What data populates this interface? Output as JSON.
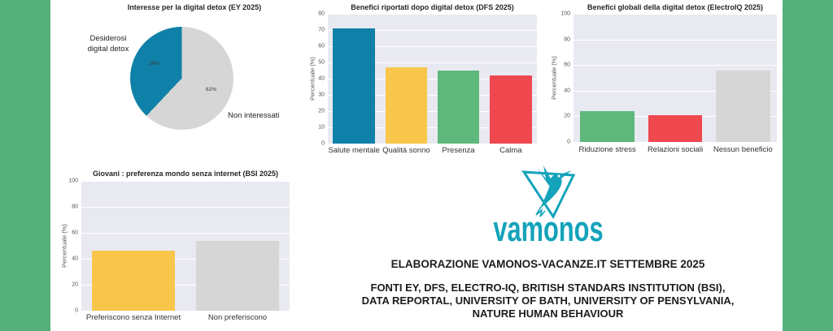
{
  "palette": {
    "band_green": "#55b07c",
    "logo_teal": "#14a3ba",
    "blue": "#0f81a8",
    "yellow": "#f8c64a",
    "green": "#5eb87b",
    "red": "#f0484f",
    "gray": "#d6d6d6",
    "plot_background": "#e9e9f2"
  },
  "chart_data": [
    {
      "type": "pie",
      "title": "Interesse per la digital detox (EY 2025)",
      "labels": [
        "Desiderosi digital detox",
        "Non interessati"
      ],
      "values": [
        38,
        62
      ],
      "colors": [
        "#0f81a8",
        "#d6d6d6"
      ],
      "slice_labels": [
        "38%",
        "62%"
      ],
      "start": "top, blue slice counterclockwise"
    },
    {
      "type": "bar",
      "title": "Benefici riportati dopo digital detox (DFS 2025)",
      "categories": [
        "Salute mentale",
        "Qualità sonno",
        "Presenza",
        "Calma"
      ],
      "values": [
        71,
        47,
        45,
        42
      ],
      "colors": [
        "#0f81a8",
        "#f8c64a",
        "#5eb87b",
        "#f0484f"
      ],
      "xlabel": "",
      "ylabel": "Percentuale (%)",
      "ylim": [
        0,
        80
      ],
      "ytick_step": 10,
      "grid": true
    },
    {
      "type": "bar",
      "title": "Benefici globali della digital detox (ElectroIQ 2025)",
      "categories": [
        "Riduzione stress",
        "Relazioni sociali",
        "Nessun beneficio"
      ],
      "values": [
        24,
        21,
        56
      ],
      "colors": [
        "#5eb87b",
        "#f0484f",
        "#d6d6d6"
      ],
      "xlabel": "",
      "ylabel": "Percentuale (%)",
      "ylim": [
        0,
        100
      ],
      "ytick_step": 20,
      "grid": true
    },
    {
      "type": "bar",
      "title": "Giovani : preferenza mondo senza internet (BSI 2025)",
      "categories": [
        "Preferiscono senza Internet",
        "Non preferiscono"
      ],
      "values": [
        46,
        54
      ],
      "colors": [
        "#f8c64a",
        "#d6d6d6"
      ],
      "xlabel": "",
      "ylabel": "Percentuale (%)",
      "ylim": [
        0,
        100
      ],
      "ytick_step": 20,
      "grid": true
    }
  ],
  "pie_annotations": {
    "left_label": "Desiderosi\ndigital detox",
    "right_label": "Non interessati",
    "blue_pct": "38%",
    "gray_pct": "62%"
  },
  "footer": {
    "brand": "vamonos",
    "line1": "ELABORAZIONE VAMONOS-VACANZE.IT SETTEMBRE 2025",
    "line2": "FONTI EY, DFS, ELECTRO-IQ, BRITISH STANDARS INSTITUTION (BSI),",
    "line3": "DATA REPORTAL, UNIVERSITY OF BATH, UNIVERSITY OF PENSYLVANIA,",
    "line4": "NATURE HUMAN BEHAVIOUR"
  }
}
